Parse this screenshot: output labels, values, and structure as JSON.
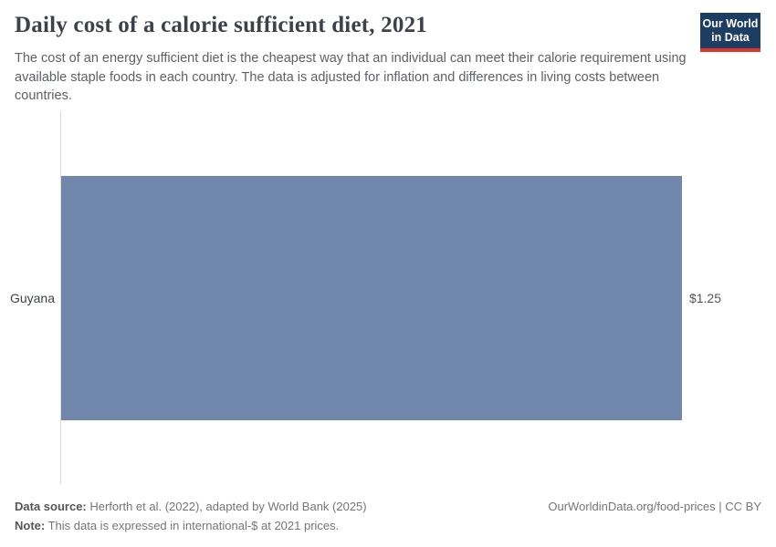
{
  "header": {
    "title": "Daily cost of a calorie sufficient diet, 2021",
    "subtitle": "The cost of an energy sufficient diet is the cheapest way that an individual can meet their calorie requirement using available staple foods in each country. The data is adjusted for inflation and differences in living costs between countries.",
    "logo": {
      "line1": "Our World",
      "line2": "in Data",
      "bg_color": "#1d3d63",
      "accent_color": "#e0362d"
    }
  },
  "chart_data": {
    "type": "bar",
    "orientation": "horizontal",
    "title": "Daily cost of a calorie sufficient diet, 2021",
    "categories": [
      "Guyana"
    ],
    "values": [
      1.25
    ],
    "value_labels": [
      "$1.25"
    ],
    "xlabel": "",
    "ylabel": "",
    "xlim": [
      0,
      1.25
    ],
    "bar_color": "#7186ab",
    "axis_line_color": "#d9d9d9",
    "grid": false,
    "legend": false
  },
  "footer": {
    "data_source_label": "Data source:",
    "data_source_text": " Herforth et al. (2022), adapted by World Bank (2025)",
    "note_label": "Note:",
    "note_text": " This data is expressed in international-$ at 2021 prices.",
    "credit": "OurWorldinData.org/food-prices | CC BY"
  }
}
